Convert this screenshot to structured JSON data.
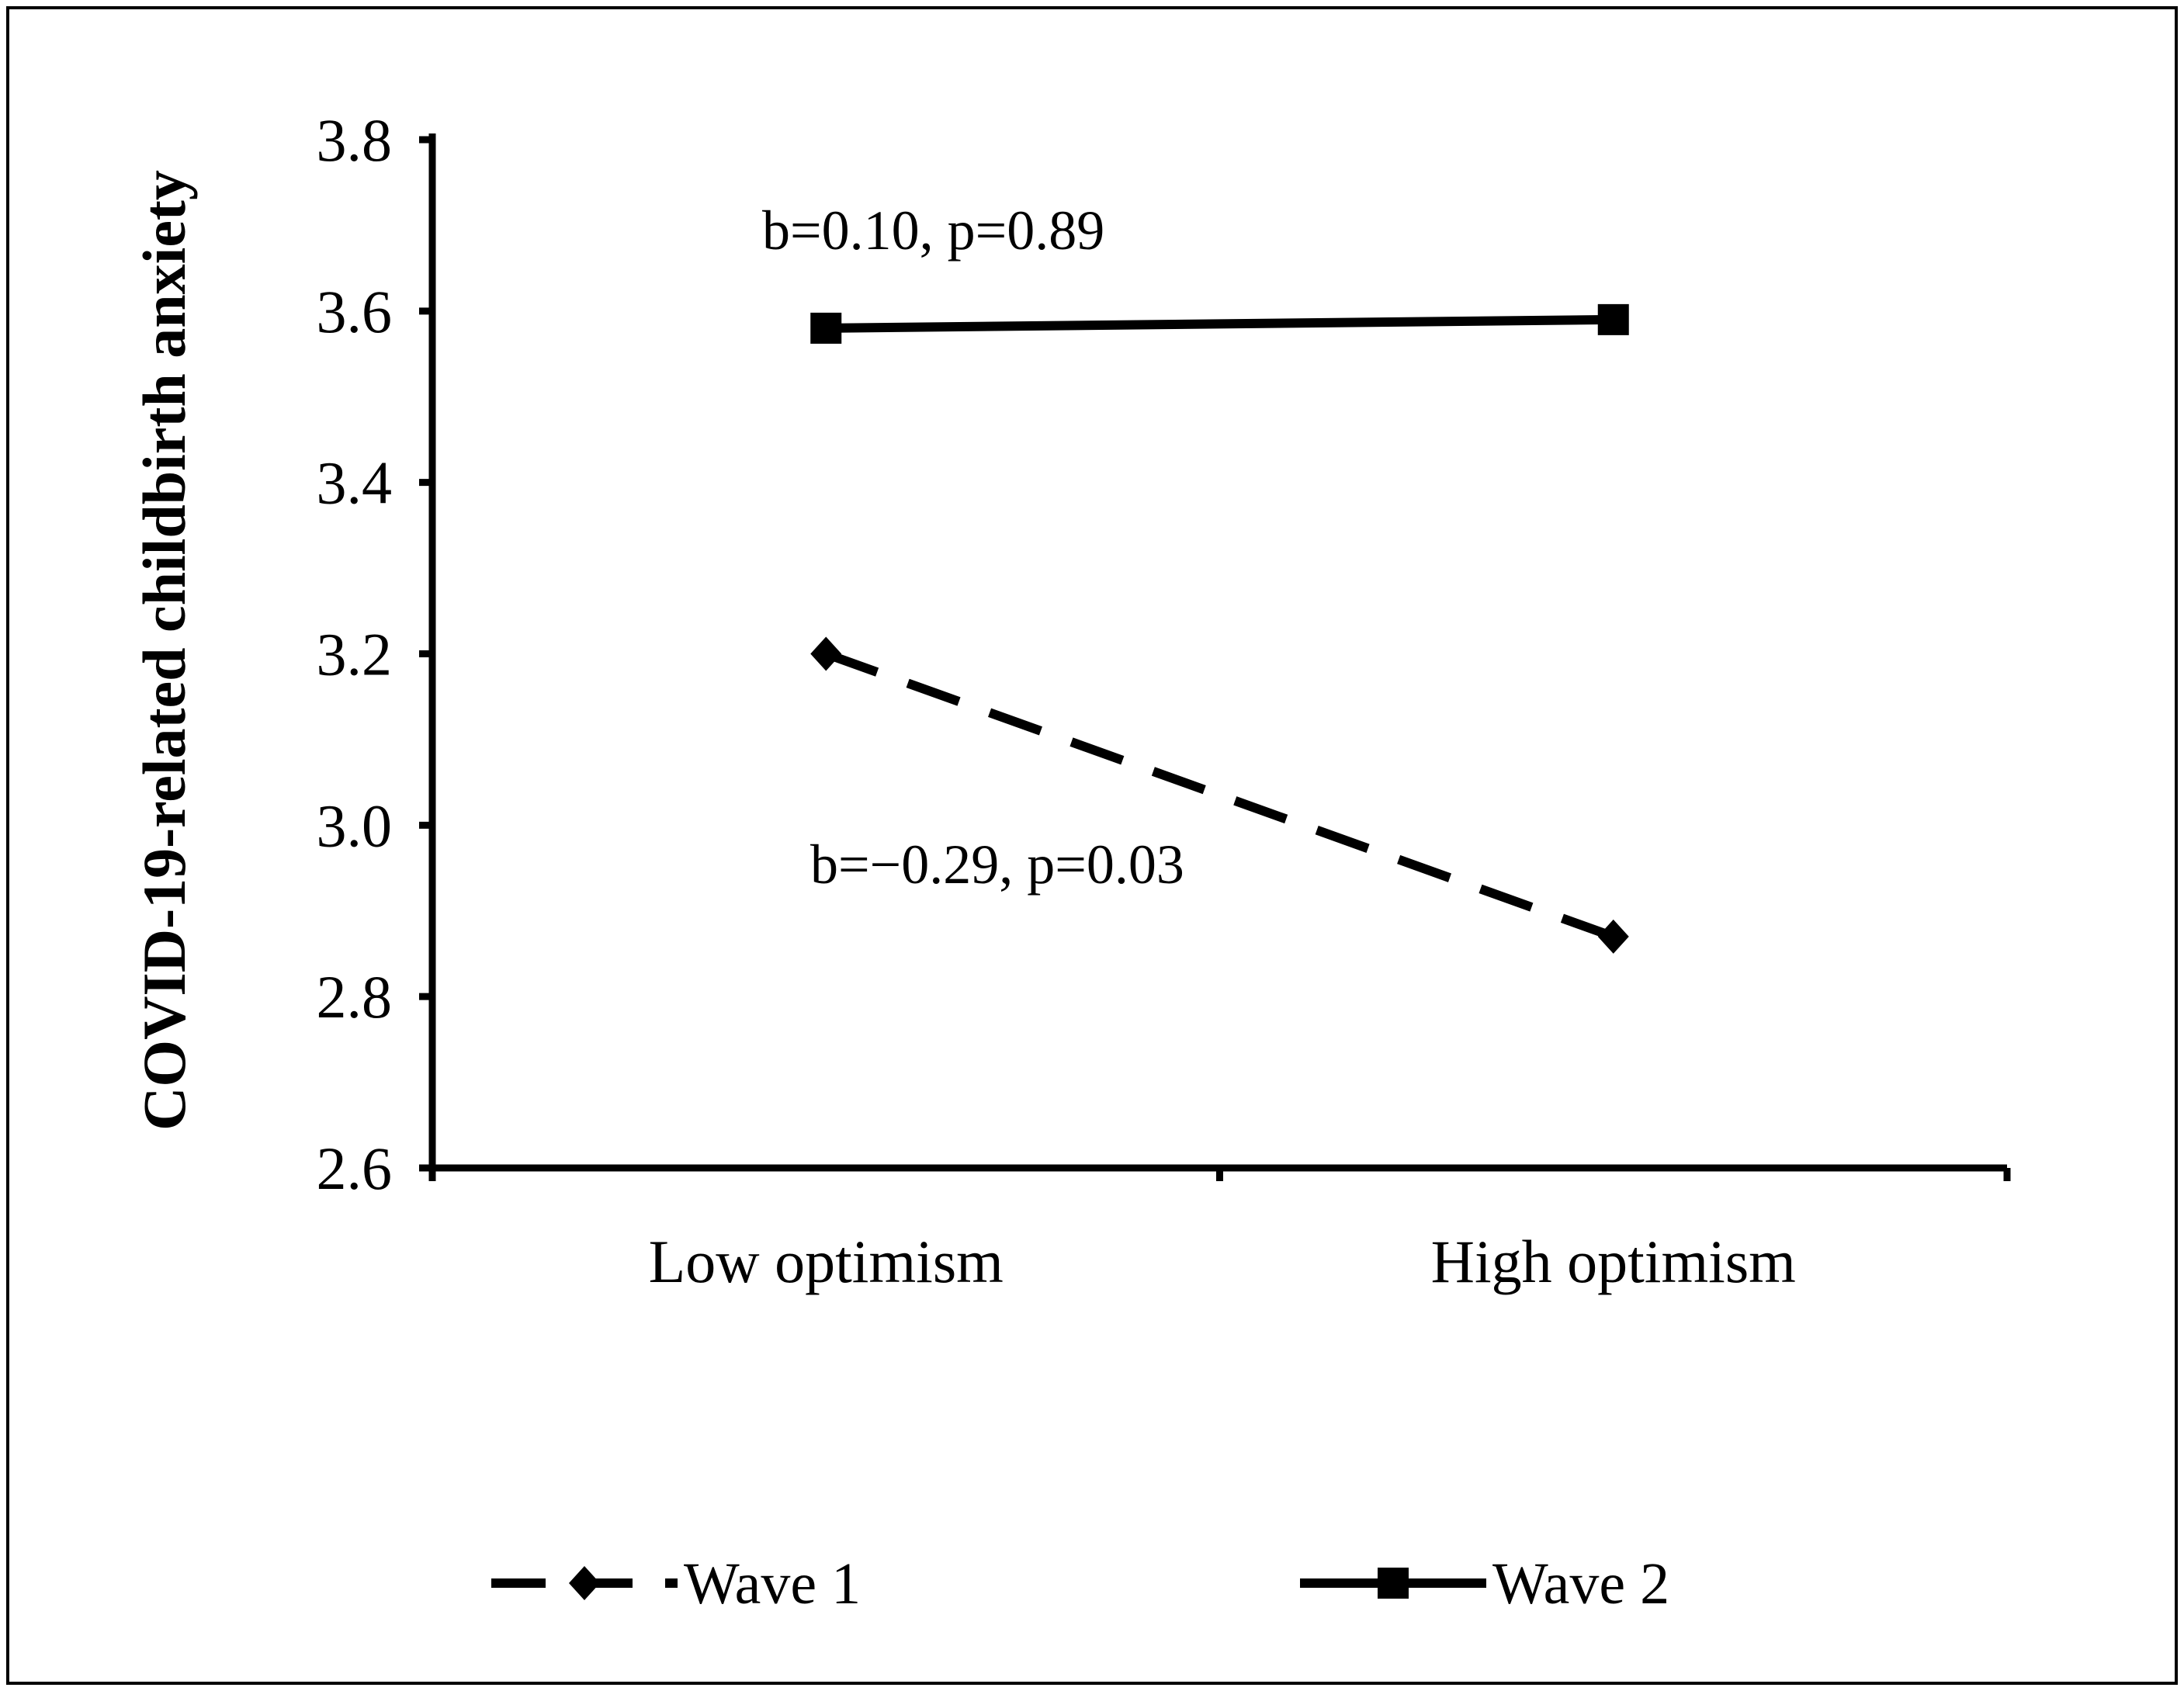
{
  "chart_data": {
    "type": "line",
    "title": "",
    "xlabel": "",
    "ylabel": "COVID-19-related childbirth anxiety",
    "categories": [
      "Low optimism",
      "High optimism"
    ],
    "ylim": [
      2.6,
      3.8
    ],
    "yticks": [
      "2.6",
      "2.8",
      "3.0",
      "3.2",
      "3.4",
      "3.6",
      "3.8"
    ],
    "grid": false,
    "legend_position": "bottom",
    "series": [
      {
        "name": "Wave 1",
        "values": [
          3.2,
          2.87
        ],
        "line_style": "dashed",
        "marker": "diamond",
        "color": "#000000"
      },
      {
        "name": "Wave 2",
        "values": [
          3.58,
          3.59
        ],
        "line_style": "solid",
        "marker": "square",
        "color": "#000000"
      }
    ],
    "annotations": [
      {
        "text": "b=0.10, p=0.89",
        "series": "Wave 2"
      },
      {
        "text": "b=−0.29, p=0.03",
        "series": "Wave 1"
      }
    ]
  }
}
